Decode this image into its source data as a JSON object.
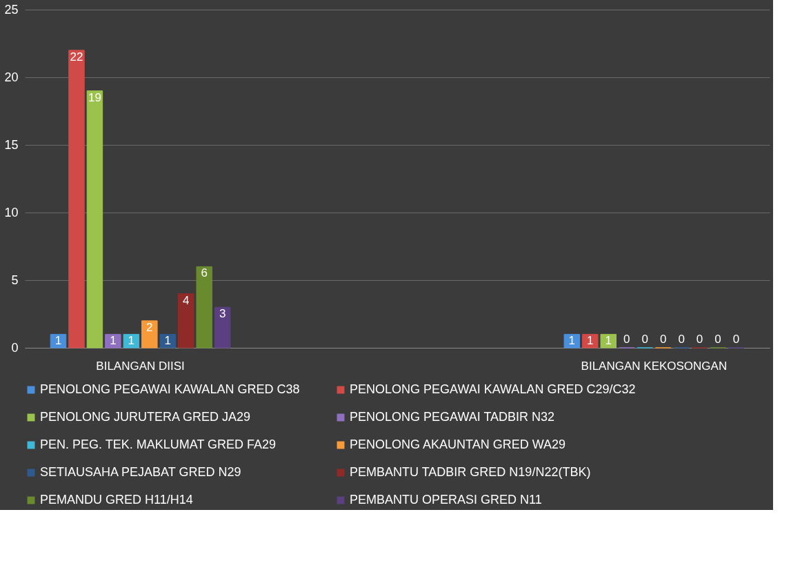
{
  "chart_data": {
    "type": "bar",
    "categories": [
      "BILANGAN DIISI",
      "BILANGAN KEKOSONGAN"
    ],
    "series": [
      {
        "name": "PENOLONG PEGAWAI KAWALAN GRED C38",
        "color": "#4a8fdc",
        "values": [
          1,
          1
        ]
      },
      {
        "name": "PENOLONG PEGAWAI KAWALAN GRED C29/C32",
        "color": "#d04a47",
        "values": [
          22,
          1
        ]
      },
      {
        "name": "PENOLONG JURUTERA GRED JA29",
        "color": "#9bc24c",
        "values": [
          19,
          1
        ]
      },
      {
        "name": "PENOLONG PEGAWAI TADBIR N32",
        "color": "#8e6fc0",
        "values": [
          1,
          0
        ]
      },
      {
        "name": "PEN. PEG. TEK. MAKLUMAT GRED FA29",
        "color": "#40b8d8",
        "values": [
          1,
          0
        ]
      },
      {
        "name": "PENOLONG AKAUNTAN GRED WA29",
        "color": "#f79a3a",
        "values": [
          2,
          0
        ]
      },
      {
        "name": "SETIAUSAHA PEJABAT GRED N29",
        "color": "#2e5a8e",
        "values": [
          1,
          0
        ]
      },
      {
        "name": "PEMBANTU TADBIR GRED N19/N22(TBK)",
        "color": "#8e2a28",
        "values": [
          4,
          0
        ]
      },
      {
        "name": "PEMANDU GRED H11/H14",
        "color": "#6a8a2e",
        "values": [
          6,
          0
        ]
      },
      {
        "name": "PEMBANTU OPERASI GRED N11",
        "color": "#5a4080",
        "values": [
          3,
          0
        ]
      }
    ],
    "ylim": [
      0,
      25
    ],
    "yticks": [
      0,
      5,
      10,
      15,
      20,
      25
    ],
    "grid": "y",
    "legend": "bottom",
    "data_labels": true
  }
}
